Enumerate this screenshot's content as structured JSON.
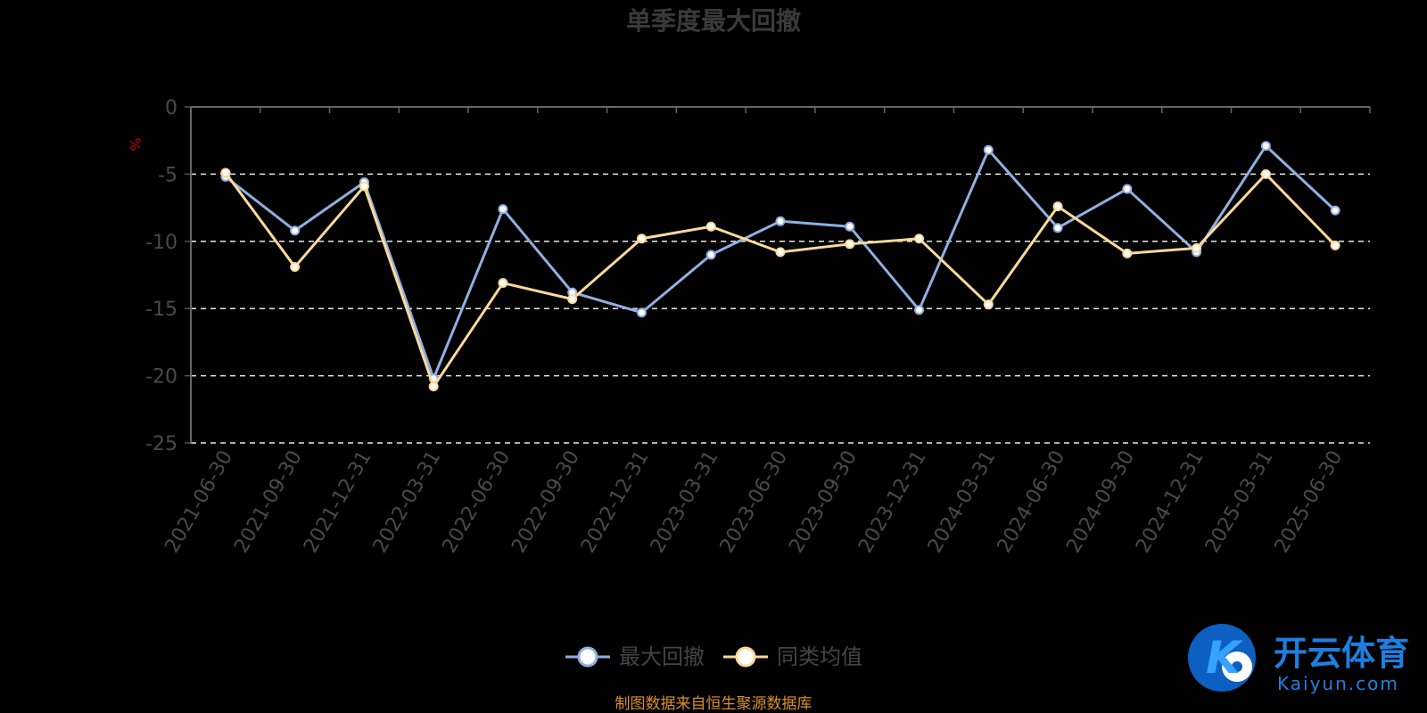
{
  "chart_data": {
    "type": "line",
    "title": "单季度最大回撤",
    "ylabel": "%",
    "ylim": [
      -25,
      0
    ],
    "yticks": [
      "0",
      "-5",
      "-10",
      "-15",
      "-20",
      "-25"
    ],
    "grid": true,
    "categories": [
      "2021-06-30",
      "2021-09-30",
      "2021-12-31",
      "2022-03-31",
      "2022-06-30",
      "2022-09-30",
      "2022-12-31",
      "2023-03-31",
      "2023-06-30",
      "2023-09-30",
      "2023-12-31",
      "2024-03-31",
      "2024-06-30",
      "2024-09-30",
      "2024-12-31",
      "2025-03-31",
      "2025-06-30"
    ],
    "series": [
      {
        "name": "最大回撤",
        "color": "#8fb0e0",
        "values": [
          -5.2,
          -9.2,
          -5.6,
          -20.2,
          -7.6,
          -13.8,
          -15.3,
          -11.0,
          -8.5,
          -8.9,
          -15.1,
          -3.2,
          -9.0,
          -6.1,
          -10.8,
          -2.9,
          -7.7
        ]
      },
      {
        "name": "同类均值",
        "color": "#fbd99a",
        "values": [
          -4.9,
          -11.9,
          -5.9,
          -20.8,
          -13.1,
          -14.3,
          -9.8,
          -8.9,
          -10.8,
          -10.2,
          -9.8,
          -14.7,
          -7.4,
          -10.9,
          -10.5,
          -5.0,
          -10.3
        ]
      }
    ],
    "legend_position": "bottom-center"
  },
  "source_note": "制图数据来自恒生聚源数据库",
  "logo": {
    "name": "开云体育",
    "domain": "Kaiyun.com",
    "mark": "K"
  }
}
